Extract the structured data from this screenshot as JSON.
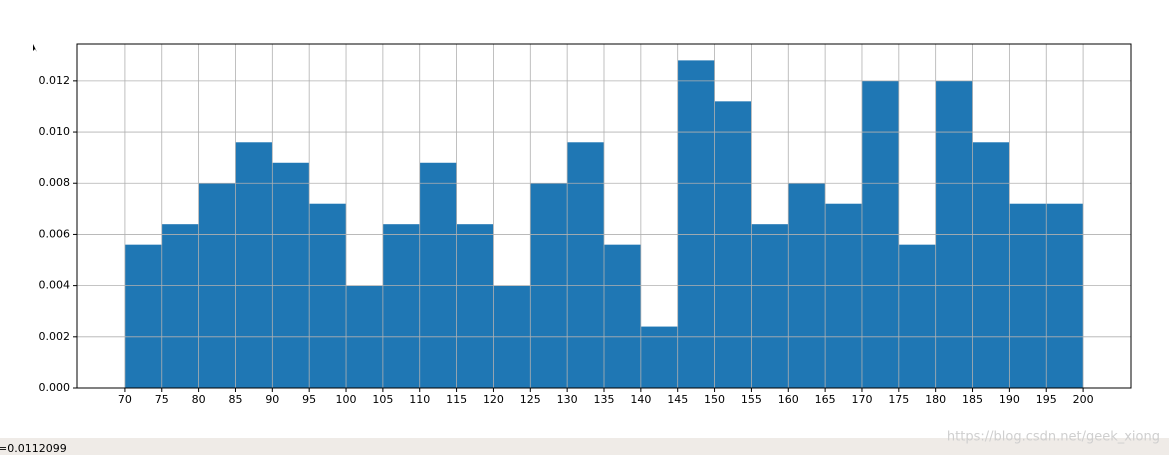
{
  "chart_data": {
    "type": "histogram",
    "bins": [
      70,
      75,
      80,
      85,
      90,
      95,
      100,
      105,
      110,
      115,
      120,
      125,
      130,
      135,
      140,
      145,
      150,
      155,
      160,
      165,
      170,
      175,
      180,
      185,
      190,
      195,
      200
    ],
    "values": [
      0.0056,
      0.0064,
      0.008,
      0.0096,
      0.0088,
      0.0072,
      0.004,
      0.0064,
      0.0088,
      0.0064,
      0.004,
      0.008,
      0.0096,
      0.0056,
      0.0024,
      0.0128,
      0.0112,
      0.0064,
      0.008,
      0.0072,
      0.012,
      0.0056,
      0.012,
      0.0096,
      0.0072,
      0.0072
    ],
    "color": "#1f77b4",
    "xlim": [
      63.5,
      206.5
    ],
    "xticks": [
      70,
      75,
      80,
      85,
      90,
      95,
      100,
      105,
      110,
      115,
      120,
      125,
      130,
      135,
      140,
      145,
      150,
      155,
      160,
      165,
      170,
      175,
      180,
      185,
      190,
      195,
      200
    ],
    "ylim": [
      0,
      0.01344
    ],
    "yticks": [
      {
        "value": 0,
        "label": "0.000"
      },
      {
        "value": 0.002,
        "label": "0.002"
      },
      {
        "value": 0.004,
        "label": "0.004"
      },
      {
        "value": 0.006,
        "label": "0.006"
      },
      {
        "value": 0.008,
        "label": "0.008"
      },
      {
        "value": 0.01,
        "label": "0.010"
      },
      {
        "value": 0.012,
        "label": "0.012"
      }
    ],
    "grid": true
  },
  "status_text": "=0.0112099",
  "watermark": "https://blog.csdn.net/geek_xiong"
}
